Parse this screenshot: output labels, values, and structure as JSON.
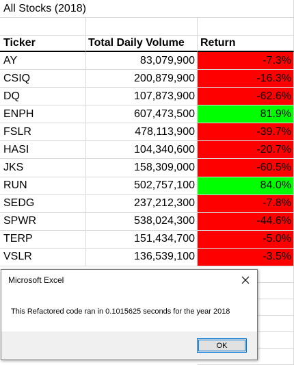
{
  "sheet": {
    "title": "All Stocks (2018)",
    "headers": {
      "ticker": "Ticker",
      "volume": "Total Daily Volume",
      "return": "Return"
    },
    "rows": [
      {
        "ticker": "AY",
        "volume": "83,079,900",
        "return": "-7.3%",
        "status": "negative"
      },
      {
        "ticker": "CSIQ",
        "volume": "200,879,900",
        "return": "-16.3%",
        "status": "negative"
      },
      {
        "ticker": "DQ",
        "volume": "107,873,900",
        "return": "-62.6%",
        "status": "negative"
      },
      {
        "ticker": "ENPH",
        "volume": "607,473,500",
        "return": "81.9%",
        "status": "positive"
      },
      {
        "ticker": "FSLR",
        "volume": "478,113,900",
        "return": "-39.7%",
        "status": "negative"
      },
      {
        "ticker": "HASI",
        "volume": "104,340,600",
        "return": "-20.7%",
        "status": "negative"
      },
      {
        "ticker": "JKS",
        "volume": "158,309,000",
        "return": "-60.5%",
        "status": "negative"
      },
      {
        "ticker": "RUN",
        "volume": "502,757,100",
        "return": "84.0%",
        "status": "positive"
      },
      {
        "ticker": "SEDG",
        "volume": "237,212,300",
        "return": "-7.8%",
        "status": "negative"
      },
      {
        "ticker": "SPWR",
        "volume": "538,024,300",
        "return": "-44.6%",
        "status": "negative"
      },
      {
        "ticker": "TERP",
        "volume": "151,434,700",
        "return": "-5.0%",
        "status": "negative"
      },
      {
        "ticker": "VSLR",
        "volume": "136,539,100",
        "return": "-3.5%",
        "status": "negative"
      }
    ],
    "colors": {
      "negative": "#ff0000",
      "positive": "#00ff00"
    }
  },
  "dialog": {
    "title": "Microsoft Excel",
    "message": "This Refactored code ran in 0.1015625 seconds for the year 2018",
    "ok_label": "OK",
    "close_icon": "close-icon"
  }
}
